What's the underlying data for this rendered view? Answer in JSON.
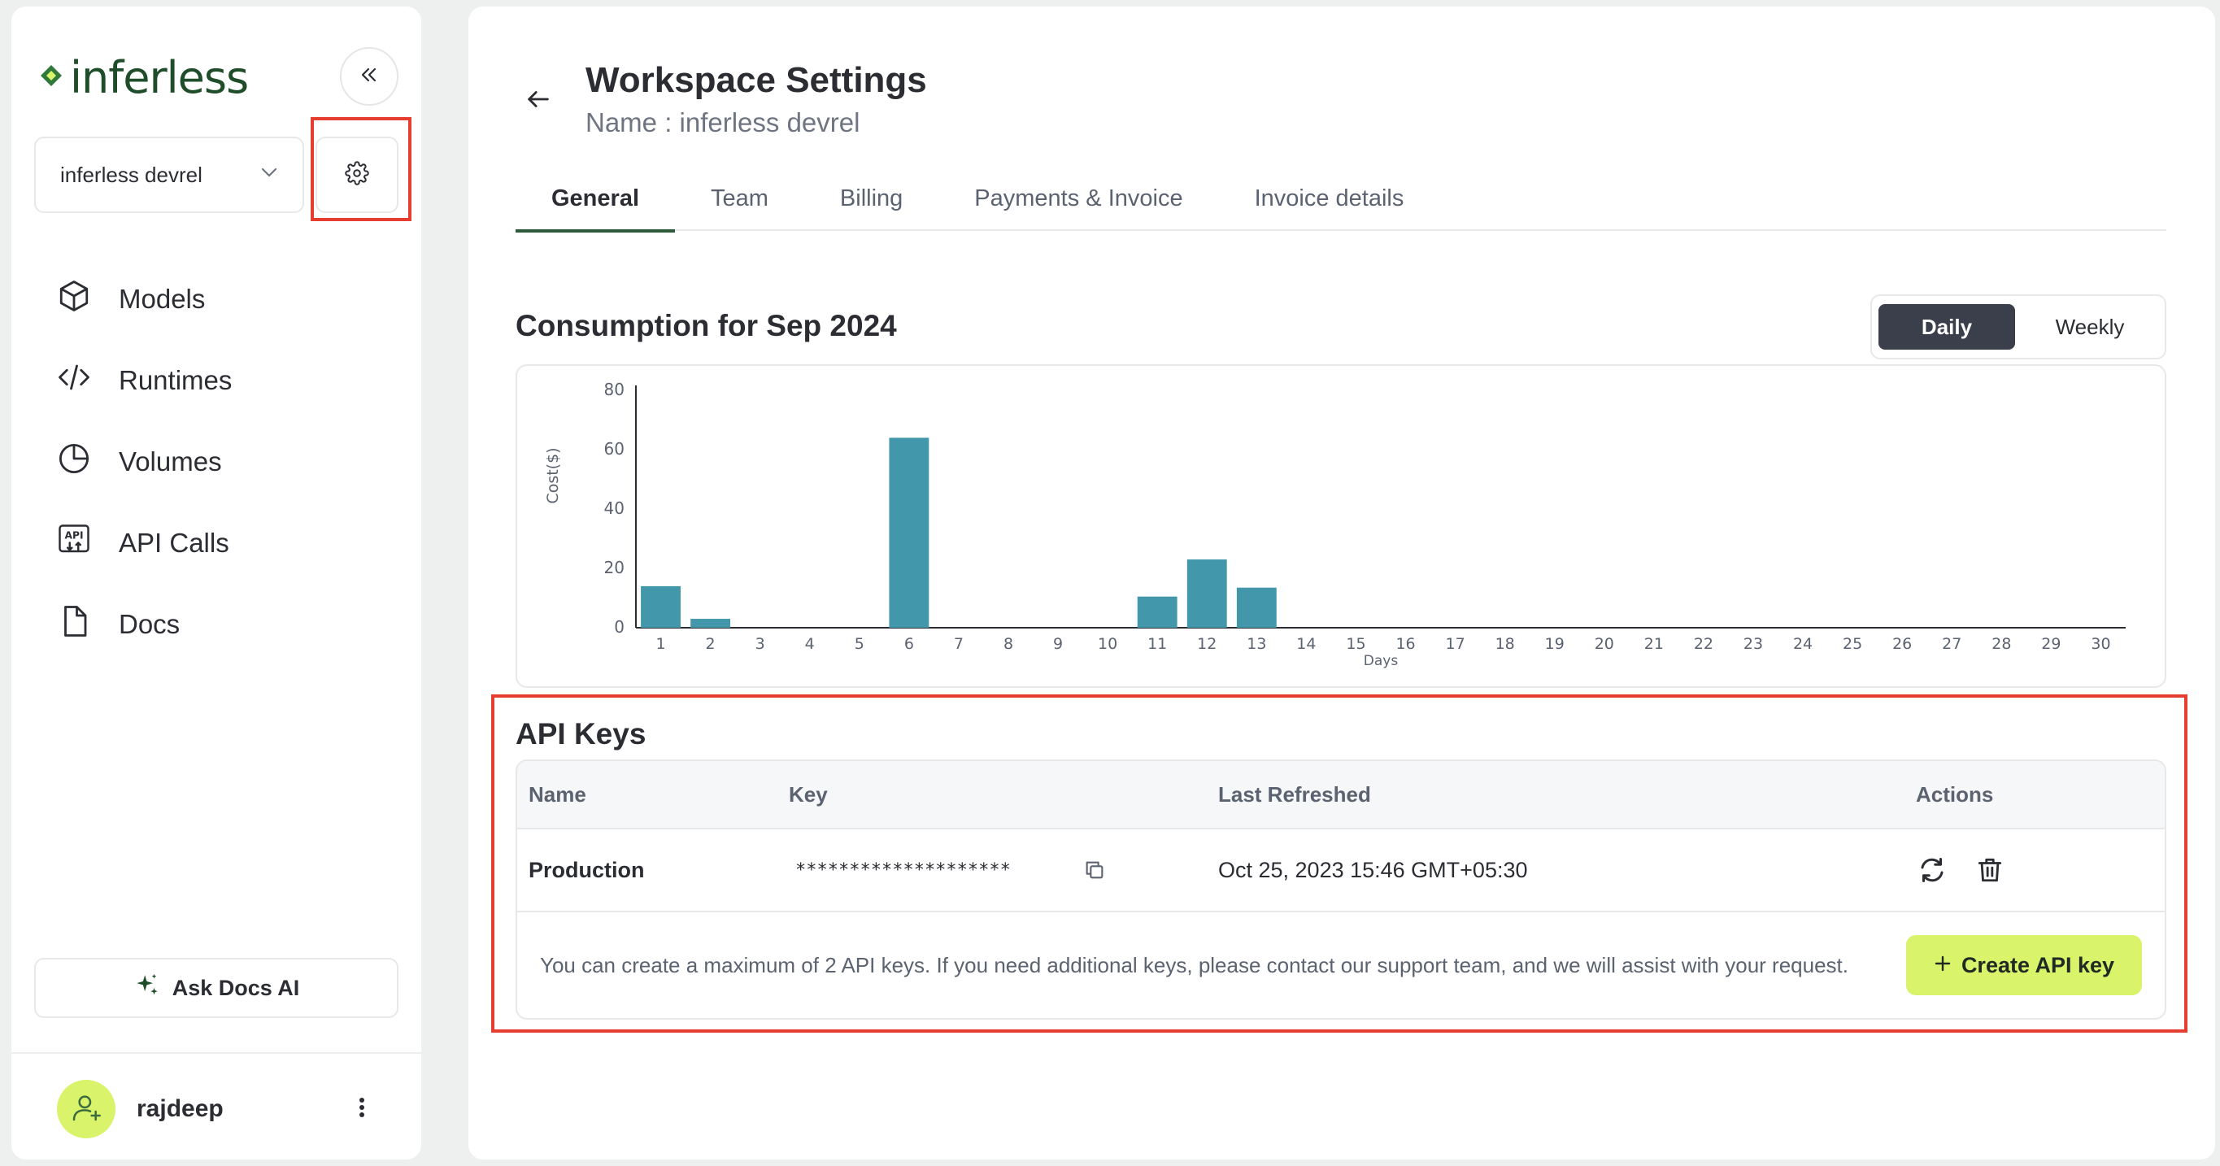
{
  "brand": {
    "logo_text": "inferless"
  },
  "sidebar": {
    "workspace_select": "inferless devrel",
    "items": [
      {
        "label": "Models",
        "icon": "cube-icon"
      },
      {
        "label": "Runtimes",
        "icon": "code-icon"
      },
      {
        "label": "Volumes",
        "icon": "pie-chart-icon"
      },
      {
        "label": "API Calls",
        "icon": "api-icon"
      },
      {
        "label": "Docs",
        "icon": "document-icon"
      }
    ],
    "ask_ai": "Ask Docs AI",
    "user_name": "rajdeep"
  },
  "header": {
    "title": "Workspace Settings",
    "subtitle": "Name : inferless devrel"
  },
  "tabs": [
    "General",
    "Team",
    "Billing",
    "Payments & Invoice",
    "Invoice details"
  ],
  "active_tab": "General",
  "consumption": {
    "title": "Consumption for Sep 2024",
    "toggle": [
      "Daily",
      "Weekly"
    ],
    "active_toggle": "Daily"
  },
  "chart_data": {
    "type": "bar",
    "categories": [
      "1",
      "2",
      "3",
      "4",
      "5",
      "6",
      "7",
      "8",
      "9",
      "10",
      "11",
      "12",
      "13",
      "14",
      "15",
      "16",
      "17",
      "18",
      "19",
      "20",
      "21",
      "22",
      "23",
      "24",
      "25",
      "26",
      "27",
      "28",
      "29",
      "30"
    ],
    "values": [
      14,
      3,
      0,
      0,
      0,
      64,
      0,
      0,
      0,
      0,
      10.5,
      23,
      13.5,
      0,
      0,
      0,
      0,
      0,
      0,
      0,
      0,
      0,
      0,
      0,
      0,
      0,
      0,
      0,
      0,
      0
    ],
    "xlabel": "Days",
    "ylabel": "Cost($)",
    "yticks": [
      0,
      20,
      40,
      60,
      80
    ],
    "ylim": [
      0,
      80
    ],
    "bar_color": "#4397ab"
  },
  "api_keys": {
    "title": "API Keys",
    "columns": [
      "Name",
      "Key",
      "Last Refreshed",
      "Actions"
    ],
    "rows": [
      {
        "name": "Production",
        "key": "********************",
        "last_refreshed": "Oct 25, 2023 15:46 GMT+05:30"
      }
    ],
    "note": "You can create a maximum of 2 API keys. If you need additional keys, please contact our support team, and we will assist with your request.",
    "create_button": "Create API key"
  },
  "colors": {
    "accent_lime": "#d9f46a",
    "dark_toggle": "#3b3f4c",
    "highlight_red": "#e53d2f",
    "brand_green": "#1f4d2a"
  }
}
